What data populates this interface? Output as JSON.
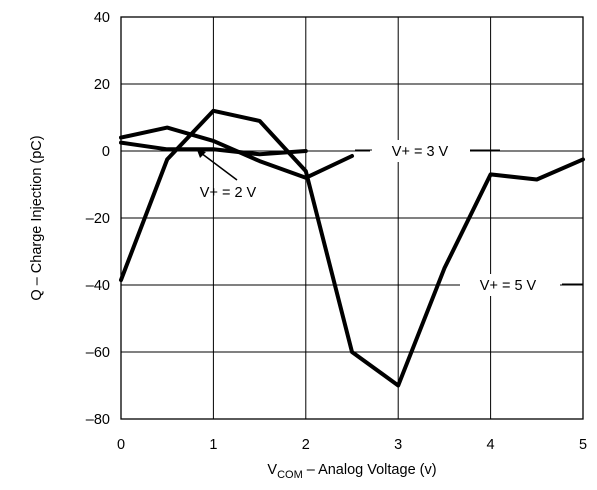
{
  "chart_data": {
    "type": "line",
    "xlabel": {
      "main": "V",
      "sub": "COM",
      "rest": " – Analog Voltage (v)"
    },
    "ylabel": "Q – Charge Injection (pC)",
    "xlim": [
      0,
      5
    ],
    "ylim": [
      -80,
      40
    ],
    "x_ticks": [
      "0",
      "1",
      "2",
      "3",
      "4",
      "5"
    ],
    "y_ticks": [
      "40",
      "20",
      "0",
      "–20",
      "–40",
      "–60",
      "–80"
    ],
    "grid": true,
    "series": [
      {
        "name": "V+ = 2 V",
        "x": [
          0,
          0.5,
          1,
          1.5,
          2
        ],
        "y": [
          2.5,
          0.5,
          0.5,
          -1,
          0
        ]
      },
      {
        "name": "V+ = 3 V",
        "x": [
          0,
          0.5,
          1,
          1.5,
          2,
          2.5
        ],
        "y": [
          4,
          7,
          3,
          -3,
          -8,
          -1.5
        ]
      },
      {
        "name": "V+ = 5 V",
        "x": [
          0,
          0.5,
          1,
          1.5,
          2,
          2.5,
          3,
          3.5,
          4,
          4.5,
          5
        ],
        "y": [
          -38.5,
          -2.5,
          12,
          9,
          -6,
          -60,
          -70,
          -35,
          -7,
          -8.5,
          -2.5
        ]
      }
    ],
    "annotations": [
      {
        "text": "V+ = 2 V",
        "series": 0
      },
      {
        "text": "V+ = 3 V",
        "series": 1
      },
      {
        "text": "V+ = 5 V",
        "series": 2
      }
    ]
  }
}
